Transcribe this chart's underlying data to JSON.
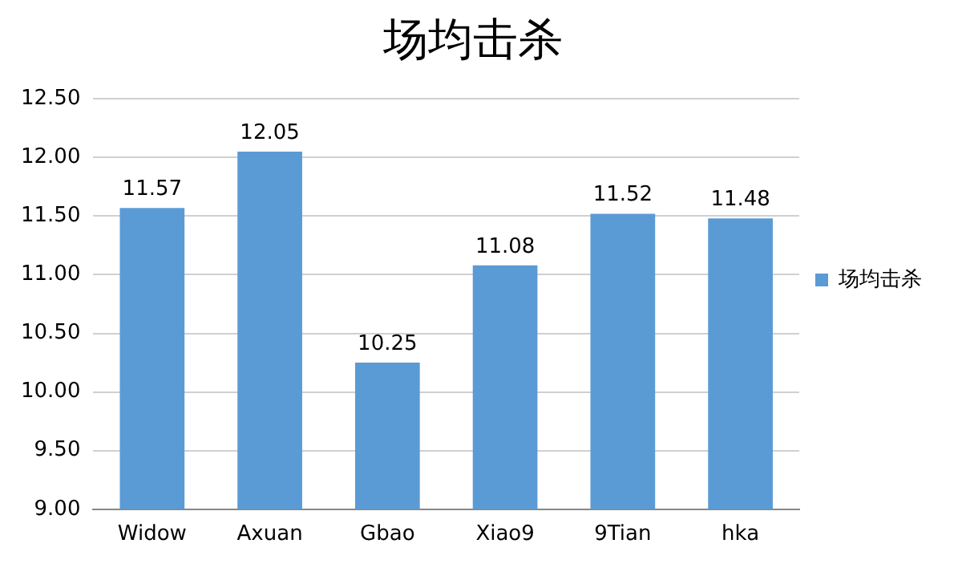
{
  "chart_data": {
    "type": "bar",
    "title": "场均击杀",
    "categories": [
      "Widow",
      "Axuan",
      "Gbao",
      "Xiao9",
      "9Tian",
      "hka"
    ],
    "series": [
      {
        "name": "场均击杀",
        "color": "#5b9bd5",
        "values": [
          11.57,
          12.05,
          10.25,
          11.08,
          11.52,
          11.48
        ]
      }
    ],
    "ylim": [
      9,
      12.5
    ],
    "yticks": [
      {
        "value": 9,
        "label": "9.00"
      },
      {
        "value": 9.5,
        "label": "9.50"
      },
      {
        "value": 10,
        "label": "10.00"
      },
      {
        "value": 10.5,
        "label": "10.50"
      },
      {
        "value": 11,
        "label": "11.00"
      },
      {
        "value": 11.5,
        "label": "11.50"
      },
      {
        "value": 12,
        "label": "12.00"
      },
      {
        "value": 12.5,
        "label": "12.50"
      }
    ],
    "grid": "y",
    "legend": "right",
    "data_labels": true
  }
}
